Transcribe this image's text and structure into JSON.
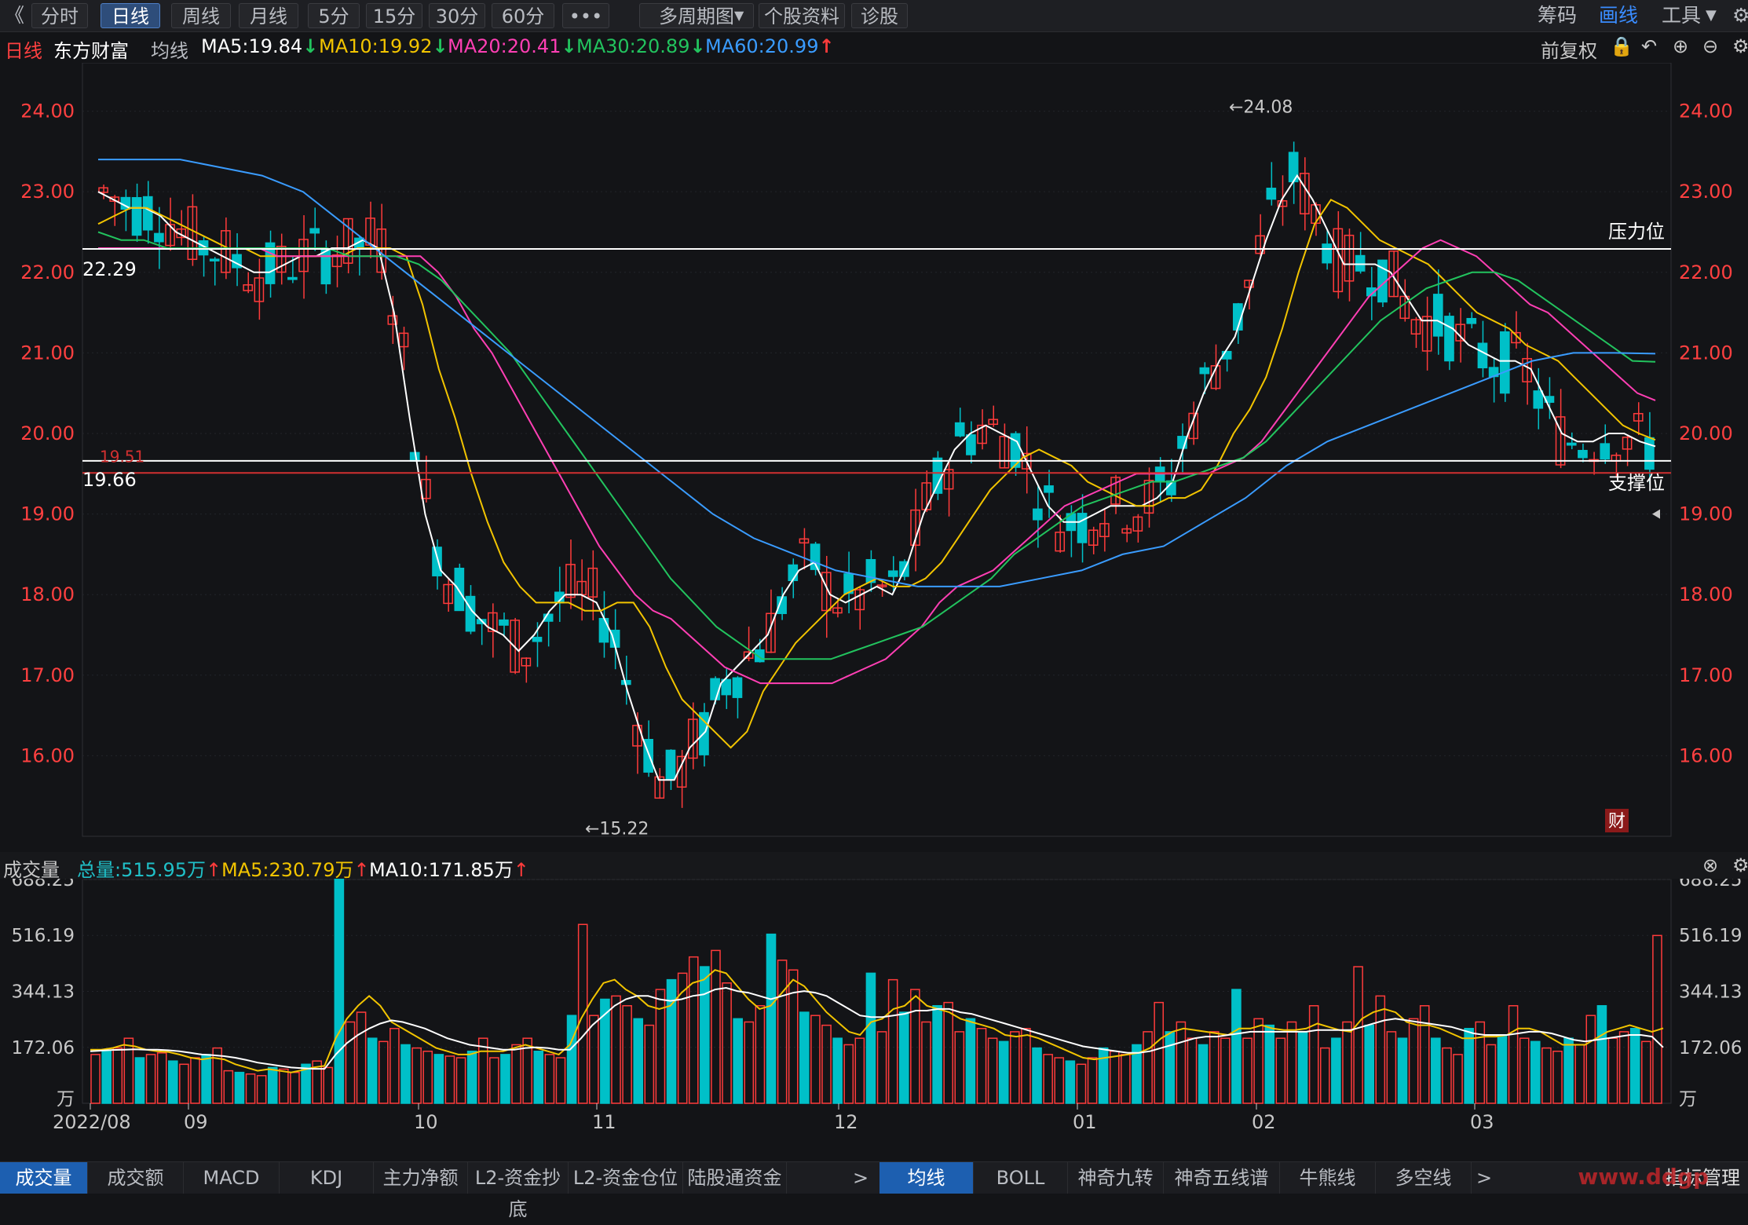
{
  "toolbar": {
    "back": "《",
    "tabs": [
      "分时",
      "日线",
      "周线",
      "月线",
      "5分",
      "15分",
      "30分",
      "60分",
      "•••",
      "多周期图",
      "个股资料",
      "诊股"
    ],
    "active_tab": "日线",
    "right": [
      "筹码",
      "画线",
      "工具"
    ]
  },
  "info": {
    "period": "日线",
    "stock_name": "东方财富",
    "ma_label": "均线",
    "ma": [
      {
        "text": "MA5:19.84",
        "arrow": "↓",
        "color": "#ffffff"
      },
      {
        "text": "MA10:19.92",
        "arrow": "↓",
        "color": "#f2c400"
      },
      {
        "text": "MA20:20.41",
        "arrow": "↓",
        "color": "#ff3fb4"
      },
      {
        "text": "MA30:20.89",
        "arrow": "↓",
        "color": "#22c35e"
      },
      {
        "text": "MA60:20.99",
        "arrow": "↑",
        "color": "#3a9cff"
      }
    ],
    "adjust": "前复权"
  },
  "colors": {
    "up": "#ff3b3b",
    "down": "#00c0c8",
    "ma5": "#ffffff",
    "ma10": "#f2c400",
    "ma20": "#ff3fb4",
    "ma30": "#22c35e",
    "ma60": "#3a9cff",
    "axis_price": "#ff4040",
    "axis_vol": "#c8c8c8"
  },
  "chart_data": [
    {
      "type": "candlestick",
      "title": "东方财富 日线",
      "ylim": [
        15,
        24.6
      ],
      "y_ticks": [
        "24.00",
        "23.00",
        "22.00",
        "21.00",
        "20.00",
        "19.00",
        "18.00",
        "17.00",
        "16.00"
      ],
      "x_ticks": [
        "2022/08",
        "09",
        "10",
        "11",
        "12",
        "01",
        "02",
        "03"
      ],
      "annotations": {
        "high": "←24.08",
        "low": "←15.22",
        "resistance_value": "22.29",
        "resistance_label": "压力位",
        "support_value": "19.66",
        "support_label": "支撑位",
        "red_line_value": "19.51",
        "finance_badge": "财"
      },
      "series": [
        {
          "name": "MA5",
          "values": [
            23.0,
            22.9,
            22.8,
            22.8,
            22.7,
            22.5,
            22.4,
            22.3,
            22.2,
            22.1,
            22.0,
            22.0,
            22.1,
            22.2,
            22.2,
            22.3,
            22.3,
            22.4,
            22.3,
            21.5,
            20.2,
            19.0,
            18.3,
            18.1,
            17.8,
            17.6,
            17.5,
            17.3,
            17.5,
            17.8,
            18.0,
            18.0,
            17.9,
            17.5,
            16.8,
            16.2,
            15.7,
            15.7,
            16.1,
            16.3,
            16.9,
            17.1,
            17.3,
            17.5,
            18.0,
            18.3,
            18.4,
            18.0,
            17.9,
            18.0,
            18.1,
            18.0,
            18.4,
            19.0,
            19.4,
            19.8,
            20.0,
            20.1,
            20.0,
            19.9,
            19.5,
            19.1,
            18.9,
            18.9,
            19.0,
            19.1,
            19.1,
            19.1,
            19.2,
            19.4,
            20.0,
            20.5,
            20.9,
            21.2,
            21.8,
            22.4,
            22.9,
            23.2,
            22.9,
            22.5,
            22.1,
            22.1,
            22.1,
            22.0,
            21.7,
            21.4,
            21.4,
            21.3,
            21.1,
            21.0,
            20.9,
            20.9,
            20.8,
            20.4,
            20.0,
            19.9,
            19.9,
            20.0,
            20.0,
            19.9,
            19.84
          ]
        },
        {
          "name": "MA10",
          "values": [
            22.6,
            22.7,
            22.8,
            22.8,
            22.7,
            22.6,
            22.5,
            22.4,
            22.3,
            22.3,
            22.2,
            22.2,
            22.2,
            22.2,
            22.2,
            22.2,
            22.3,
            22.3,
            22.3,
            22.2,
            21.6,
            20.8,
            20.2,
            19.5,
            18.9,
            18.4,
            18.1,
            17.9,
            17.9,
            17.9,
            17.8,
            17.8,
            17.9,
            17.9,
            17.6,
            17.1,
            16.7,
            16.5,
            16.3,
            16.1,
            16.3,
            16.8,
            17.1,
            17.4,
            17.6,
            17.8,
            18.0,
            18.1,
            18.2,
            18.1,
            18.1,
            18.2,
            18.4,
            18.7,
            19.0,
            19.3,
            19.5,
            19.7,
            19.8,
            19.7,
            19.6,
            19.4,
            19.3,
            19.2,
            19.1,
            19.1,
            19.2,
            19.2,
            19.3,
            19.6,
            20.0,
            20.3,
            20.7,
            21.3,
            22.0,
            22.6,
            22.9,
            22.8,
            22.6,
            22.4,
            22.3,
            22.2,
            22.1,
            21.9,
            21.7,
            21.5,
            21.4,
            21.3,
            21.1,
            21.0,
            20.9,
            20.7,
            20.5,
            20.3,
            20.1,
            20.0,
            19.92
          ]
        },
        {
          "name": "MA20",
          "values": [
            22.3,
            22.3,
            22.3,
            22.3,
            22.3,
            22.3,
            22.3,
            22.3,
            22.3,
            22.3,
            22.2,
            22.2,
            22.2,
            22.2,
            22.2,
            22.2,
            22.2,
            22.2,
            22.2,
            22.0,
            21.7,
            21.3,
            21.0,
            20.6,
            20.2,
            19.8,
            19.4,
            19.0,
            18.6,
            18.3,
            18.0,
            17.8,
            17.7,
            17.5,
            17.3,
            17.1,
            17.0,
            16.9,
            16.9,
            16.9,
            16.9,
            16.9,
            17.0,
            17.1,
            17.2,
            17.4,
            17.6,
            17.9,
            18.1,
            18.2,
            18.3,
            18.5,
            18.7,
            18.9,
            19.1,
            19.2,
            19.3,
            19.4,
            19.5,
            19.5,
            19.5,
            19.5,
            19.5,
            19.6,
            19.7,
            19.9,
            20.2,
            20.5,
            20.8,
            21.1,
            21.4,
            21.7,
            21.9,
            22.1,
            22.3,
            22.4,
            22.3,
            22.2,
            22.0,
            21.8,
            21.6,
            21.5,
            21.3,
            21.1,
            20.9,
            20.7,
            20.5,
            20.41
          ]
        },
        {
          "name": "MA30",
          "values": [
            22.5,
            22.4,
            22.4,
            22.3,
            22.3,
            22.3,
            22.3,
            22.3,
            22.3,
            22.3,
            22.3,
            22.2,
            22.2,
            22.2,
            22.1,
            21.9,
            21.6,
            21.3,
            21.0,
            20.6,
            20.2,
            19.8,
            19.4,
            19.0,
            18.6,
            18.2,
            17.9,
            17.6,
            17.4,
            17.2,
            17.2,
            17.2,
            17.2,
            17.3,
            17.4,
            17.5,
            17.6,
            17.8,
            18.0,
            18.2,
            18.5,
            18.7,
            18.9,
            19.1,
            19.2,
            19.3,
            19.4,
            19.4,
            19.5,
            19.6,
            19.7,
            19.9,
            20.2,
            20.5,
            20.8,
            21.1,
            21.4,
            21.6,
            21.8,
            21.9,
            22.0,
            22.0,
            21.9,
            21.7,
            21.5,
            21.3,
            21.1,
            20.9,
            20.89
          ]
        },
        {
          "name": "MA60",
          "values": [
            23.4,
            23.4,
            23.4,
            23.3,
            23.2,
            23.0,
            22.6,
            22.2,
            21.8,
            21.4,
            21.0,
            20.6,
            20.2,
            19.8,
            19.4,
            19.0,
            18.7,
            18.5,
            18.3,
            18.2,
            18.1,
            18.1,
            18.1,
            18.2,
            18.3,
            18.5,
            18.6,
            18.9,
            19.2,
            19.6,
            19.9,
            20.1,
            20.3,
            20.5,
            20.7,
            20.9,
            21.0,
            21.0,
            20.99
          ]
        }
      ]
    },
    {
      "type": "bar",
      "title": "成交量",
      "ylim": [
        0,
        688.25
      ],
      "y_ticks": [
        "688.25",
        "516.19",
        "344.13",
        "172.06",
        "万"
      ],
      "total_label": "总量:515.95万",
      "ma5_label": "MA5:230.79万",
      "ma10_label": "MA10:171.85万",
      "values": [
        150,
        160,
        170,
        200,
        140,
        150,
        155,
        130,
        120,
        140,
        150,
        170,
        100,
        95,
        90,
        85,
        110,
        105,
        95,
        120,
        130,
        110,
        700,
        250,
        280,
        200,
        190,
        230,
        180,
        170,
        160,
        150,
        145,
        140,
        160,
        200,
        140,
        150,
        180,
        200,
        160,
        150,
        140,
        270,
        550,
        270,
        320,
        330,
        300,
        260,
        240,
        350,
        380,
        400,
        450,
        420,
        470,
        370,
        260,
        250,
        300,
        520,
        440,
        410,
        280,
        270,
        240,
        200,
        180,
        200,
        400,
        220,
        380,
        280,
        350,
        250,
        300,
        310,
        220,
        260,
        230,
        200,
        190,
        220,
        230,
        170,
        150,
        140,
        130,
        120,
        140,
        170,
        160,
        150,
        180,
        220,
        310,
        220,
        250,
        200,
        180,
        220,
        200,
        350,
        200,
        260,
        240,
        200,
        250,
        220,
        300,
        170,
        200,
        250,
        420,
        240,
        330,
        220,
        200,
        260,
        300,
        200,
        170,
        150,
        230,
        250,
        180,
        210,
        300,
        200,
        190,
        170,
        160,
        200,
        180,
        270,
        300,
        200,
        220,
        230,
        190,
        516
      ],
      "ma5": [
        165,
        165,
        170,
        180,
        175,
        165,
        160,
        158,
        150,
        140,
        135,
        140,
        135,
        120,
        110,
        100,
        105,
        100,
        95,
        102,
        110,
        115,
        200,
        260,
        300,
        330,
        300,
        250,
        230,
        210,
        190,
        170,
        160,
        150,
        150,
        160,
        160,
        160,
        170,
        180,
        170,
        160,
        150,
        180,
        260,
        320,
        370,
        380,
        350,
        330,
        300,
        290,
        300,
        340,
        370,
        380,
        410,
        400,
        360,
        320,
        290,
        300,
        340,
        380,
        360,
        320,
        280,
        250,
        220,
        210,
        250,
        260,
        290,
        300,
        330,
        300,
        290,
        280,
        260,
        250,
        240,
        230,
        210,
        205,
        210,
        200,
        185,
        170,
        155,
        140,
        135,
        140,
        145,
        150,
        155,
        170,
        200,
        220,
        230,
        225,
        220,
        215,
        210,
        230,
        230,
        240,
        230,
        225,
        225,
        230,
        245,
        235,
        225,
        220,
        260,
        280,
        290,
        280,
        250,
        240,
        240,
        230,
        215,
        200,
        200,
        205,
        205,
        210,
        230,
        230,
        220,
        200,
        180,
        180,
        180,
        200,
        220,
        230,
        240,
        230,
        220,
        230.79
      ],
      "ma10": [
        160,
        162,
        164,
        165,
        166,
        165,
        165,
        163,
        160,
        155,
        150,
        148,
        145,
        140,
        133,
        125,
        120,
        115,
        110,
        108,
        106,
        106,
        150,
        185,
        210,
        230,
        245,
        255,
        250,
        240,
        230,
        215,
        200,
        190,
        180,
        175,
        170,
        165,
        165,
        170,
        172,
        170,
        165,
        165,
        200,
        240,
        270,
        300,
        320,
        330,
        330,
        320,
        315,
        320,
        330,
        335,
        350,
        355,
        345,
        340,
        330,
        320,
        330,
        340,
        345,
        340,
        330,
        310,
        290,
        270,
        265,
        265,
        270,
        275,
        285,
        285,
        290,
        290,
        280,
        275,
        265,
        255,
        245,
        235,
        225,
        215,
        205,
        195,
        185,
        175,
        170,
        165,
        160,
        155,
        155,
        160,
        170,
        180,
        190,
        200,
        205,
        205,
        210,
        215,
        220,
        220,
        220,
        220,
        220,
        220,
        225,
        225,
        225,
        225,
        235,
        245,
        255,
        260,
        255,
        250,
        245,
        240,
        235,
        225,
        215,
        210,
        210,
        210,
        215,
        220,
        220,
        215,
        205,
        195,
        190,
        195,
        200,
        205,
        210,
        210,
        205,
        171.85
      ]
    }
  ],
  "bottom": {
    "left_tabs": [
      "成交量",
      "成交额",
      "MACD",
      "KDJ",
      "主力净额",
      "L2-资金抄底",
      "L2-资金仓位",
      "陆股通资金"
    ],
    "right_tabs": [
      "均线",
      "BOLL",
      "神奇九转",
      "神奇五线谱",
      "牛熊线",
      "多空线"
    ],
    "more": ">",
    "manage": "指标管理",
    "watermark": "www.ddgp"
  }
}
